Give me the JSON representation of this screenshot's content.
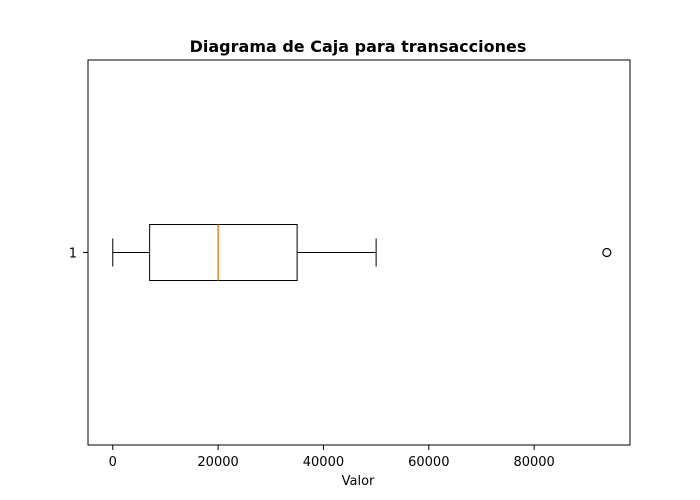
{
  "chart_data": {
    "type": "boxplot",
    "orientation": "horizontal",
    "title": "Diagrama de Caja para transacciones",
    "xlabel": "Valor",
    "ylabel": "",
    "xlim": [
      -4700,
      98200
    ],
    "xticks": [
      0,
      20000,
      40000,
      60000,
      80000
    ],
    "xtick_labels": [
      "0",
      "20000",
      "40000",
      "60000",
      "80000"
    ],
    "categories": [
      "1"
    ],
    "boxes": [
      {
        "label": "1",
        "whisker_low": 0,
        "q1": 7000,
        "median": 20000,
        "q3": 35000,
        "whisker_high": 50000,
        "outliers": [
          93800
        ]
      }
    ],
    "grid": false,
    "colors": {
      "box": "#000000",
      "median": "#ff7f0e",
      "outlier": "#000000"
    }
  }
}
